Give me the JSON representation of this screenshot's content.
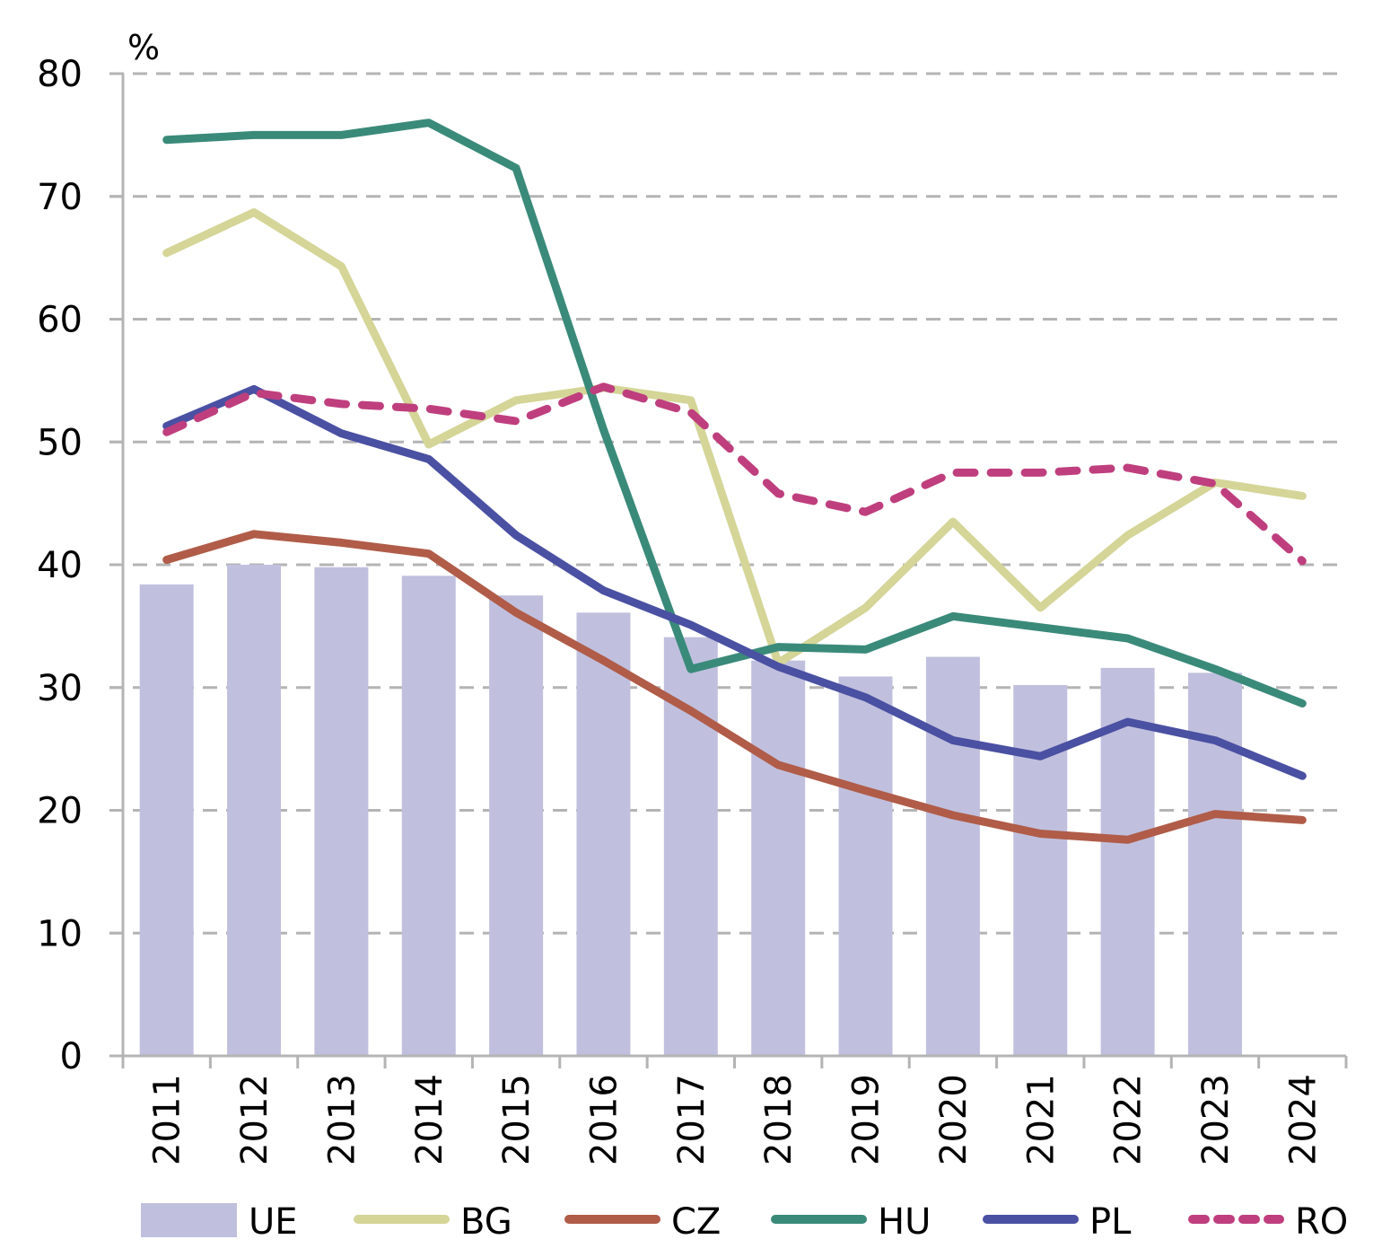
{
  "chart_data": {
    "type": "bar",
    "title": "",
    "unit_label": "%",
    "xlabel": "",
    "ylabel": "%",
    "ylim": [
      0,
      80
    ],
    "yticks": [
      0,
      10,
      20,
      30,
      40,
      50,
      60,
      70,
      80
    ],
    "grid": true,
    "legend_position": "bottom",
    "categories": [
      "2011",
      "2012",
      "2013",
      "2014",
      "2015",
      "2016",
      "2017",
      "2018",
      "2019",
      "2020",
      "2021",
      "2022",
      "2023",
      "2024"
    ],
    "series": [
      {
        "name": "UE",
        "type": "bar",
        "color": "#c0c0de",
        "values": [
          38.4,
          40.0,
          39.8,
          39.1,
          37.5,
          36.1,
          34.1,
          32.2,
          30.9,
          32.5,
          30.2,
          31.6,
          31.2,
          null
        ]
      },
      {
        "name": "BG",
        "type": "line",
        "color": "#d4d597",
        "dashed": false,
        "values": [
          65.4,
          68.7,
          64.3,
          49.8,
          53.4,
          54.4,
          53.4,
          32.0,
          36.5,
          43.5,
          36.5,
          42.4,
          46.7,
          45.6
        ]
      },
      {
        "name": "CZ",
        "type": "line",
        "color": "#b05c48",
        "dashed": false,
        "values": [
          40.4,
          42.5,
          41.8,
          40.9,
          36.1,
          32.2,
          28.1,
          23.7,
          21.6,
          19.6,
          18.1,
          17.6,
          19.7,
          19.2
        ]
      },
      {
        "name": "HU",
        "type": "line",
        "color": "#3a8a7a",
        "dashed": false,
        "values": [
          74.6,
          75.0,
          75.0,
          76.0,
          72.3,
          51.0,
          31.5,
          33.3,
          33.1,
          35.8,
          34.9,
          34.0,
          31.5,
          28.7
        ]
      },
      {
        "name": "PL",
        "type": "line",
        "color": "#4a50a2",
        "dashed": false,
        "values": [
          51.3,
          54.3,
          50.7,
          48.6,
          42.4,
          37.9,
          35.1,
          31.7,
          29.2,
          25.7,
          24.4,
          27.2,
          25.7,
          22.8
        ]
      },
      {
        "name": "RO",
        "type": "line",
        "color": "#bf3f7e",
        "dashed": true,
        "values": [
          50.8,
          54.0,
          53.1,
          52.7,
          51.7,
          54.5,
          52.4,
          45.8,
          44.3,
          47.5,
          47.5,
          47.9,
          46.6,
          40.3
        ]
      }
    ]
  }
}
